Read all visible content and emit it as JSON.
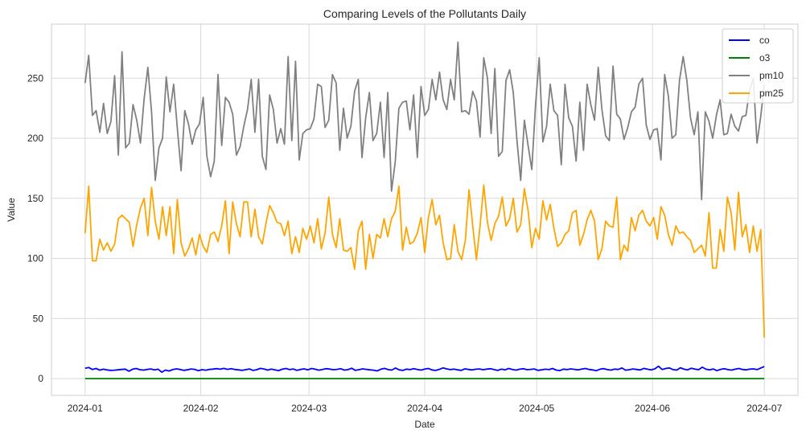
{
  "chart_data": {
    "type": "line",
    "title": "Comparing Levels of the Pollutants Daily",
    "xlabel": "Date",
    "ylabel": "Value",
    "x_start": "2024-01-01",
    "x_end": "2024-07-01",
    "xlim": [
      "2023-12-23",
      "2024-07-10"
    ],
    "ylim": [
      -14,
      295
    ],
    "grid": true,
    "legend_position": "top-right",
    "x_ticks": [
      "2024-01",
      "2024-02",
      "2024-03",
      "2024-04",
      "2024-05",
      "2024-06",
      "2024-07"
    ],
    "y_ticks": [
      0,
      50,
      100,
      150,
      200,
      250
    ],
    "series": [
      {
        "name": "co",
        "color": "#0000ff",
        "values": [
          8.6,
          9.2,
          7.6,
          8.4,
          7.1,
          7.8,
          7.2,
          6.9,
          7.0,
          7.3,
          7.6,
          7.9,
          6.1,
          7.8,
          8.4,
          7.4,
          7.1,
          7.6,
          8.0,
          7.3,
          7.8,
          5.3,
          7.1,
          6.3,
          7.5,
          8.1,
          7.6,
          6.9,
          7.3,
          8.0,
          7.7,
          6.6,
          7.4,
          7.0,
          7.6,
          7.9,
          8.3,
          7.8,
          8.5,
          7.7,
          8.2,
          7.6,
          7.3,
          6.9,
          7.4,
          8.0,
          6.8,
          7.4,
          8.5,
          8.0,
          7.1,
          7.9,
          7.3,
          6.7,
          7.8,
          8.4,
          7.5,
          8.0,
          6.9,
          7.6,
          8.1,
          7.3,
          8.4,
          7.8,
          7.0,
          7.6,
          8.3,
          7.9,
          7.4,
          7.7,
          8.2,
          7.1,
          7.5,
          8.6,
          6.9,
          7.4,
          8.1,
          7.7,
          7.3,
          7.0,
          6.4,
          7.8,
          8.5,
          7.5,
          7.1,
          8.8,
          7.3,
          6.8,
          7.9,
          7.5,
          8.3,
          7.6,
          7.1,
          7.9,
          8.4,
          7.2,
          6.8,
          7.7,
          8.9,
          8.1,
          7.5,
          7.9,
          7.3,
          6.9,
          8.1,
          7.6,
          7.2,
          7.8,
          8.0,
          7.4,
          7.9,
          8.2,
          7.5,
          6.8,
          7.9,
          7.3,
          8.4,
          7.6,
          7.1,
          7.8,
          8.2,
          7.4,
          7.7,
          8.0,
          6.9,
          7.3,
          7.8,
          7.5,
          8.4,
          7.1,
          6.7,
          7.9,
          7.5,
          8.1,
          7.7,
          7.3,
          7.9,
          8.4,
          7.6,
          7.2,
          6.6,
          7.8,
          8.3,
          7.5,
          7.1,
          7.9,
          7.6,
          8.8,
          7.0,
          7.4,
          8.0,
          7.6,
          7.2,
          8.5,
          7.8,
          7.3,
          8.1,
          10.3,
          7.6,
          8.4,
          8.9,
          7.5,
          7.1,
          9.0,
          7.8,
          7.3,
          8.6,
          7.9,
          7.4,
          9.5,
          7.8,
          7.2,
          8.0,
          6.6,
          7.7,
          8.3,
          7.5,
          7.1,
          7.8,
          8.4,
          7.6,
          7.3,
          7.9,
          8.1,
          7.5,
          8.8,
          10.0
        ],
        "note_color_name": "blue"
      },
      {
        "name": "o3",
        "color": "#008000",
        "values_constant": 0.0
      },
      {
        "name": "pm10",
        "color": "#808080",
        "values": [
          246,
          269,
          219,
          223,
          205,
          229,
          204,
          214,
          252,
          186,
          272,
          192,
          196,
          228,
          215,
          196,
          233,
          259,
          222,
          165,
          192,
          200,
          251,
          222,
          245,
          208,
          173,
          223,
          212,
          195,
          207,
          212,
          234,
          185,
          168,
          181,
          253,
          194,
          234,
          230,
          220,
          186,
          193,
          210,
          224,
          249,
          205,
          249,
          185,
          174,
          236,
          224,
          196,
          208,
          195,
          268,
          198,
          264,
          182,
          204,
          207,
          208,
          216,
          245,
          243,
          209,
          215,
          253,
          246,
          190,
          225,
          200,
          210,
          239,
          249,
          184,
          217,
          238,
          198,
          204,
          230,
          184,
          238,
          156,
          180,
          225,
          230,
          231,
          207,
          236,
          184,
          243,
          219,
          224,
          249,
          232,
          255,
          232,
          224,
          249,
          232,
          280,
          222,
          223,
          220,
          239,
          231,
          201,
          267,
          250,
          204,
          258,
          185,
          189,
          248,
          257,
          238,
          198,
          165,
          215,
          194,
          174,
          227,
          267,
          197,
          210,
          245,
          223,
          219,
          178,
          245,
          217,
          210,
          181,
          230,
          190,
          245,
          228,
          215,
          259,
          224,
          202,
          198,
          260,
          220,
          216,
          199,
          209,
          222,
          226,
          245,
          250,
          211,
          199,
          207,
          208,
          182,
          253,
          235,
          200,
          203,
          248,
          268,
          248,
          217,
          203,
          222,
          149,
          222,
          214,
          200,
          219,
          232,
          203,
          204,
          220,
          210,
          206,
          218,
          219,
          240,
          250,
          196,
          218,
          245
        ]
      },
      {
        "name": "pm25",
        "color": "#ffa500",
        "values": [
          121,
          160,
          98,
          98,
          116,
          107,
          113,
          106,
          112,
          133,
          136,
          133,
          130,
          110,
          128,
          142,
          150,
          119,
          159,
          131,
          116,
          143,
          119,
          143,
          104,
          149,
          113,
          102,
          108,
          117,
          103,
          120,
          110,
          105,
          120,
          122,
          114,
          127,
          148,
          104,
          147,
          129,
          118,
          147,
          147,
          118,
          141,
          118,
          112,
          129,
          144,
          138,
          130,
          129,
          119,
          131,
          104,
          118,
          105,
          125,
          116,
          127,
          113,
          133,
          108,
          121,
          151,
          120,
          109,
          133,
          107,
          106,
          109,
          91,
          123,
          131,
          91,
          120,
          100,
          120,
          117,
          133,
          118,
          133,
          139,
          160,
          107,
          126,
          112,
          114,
          121,
          134,
          105,
          134,
          149,
          128,
          136,
          113,
          99,
          100,
          128,
          106,
          99,
          115,
          157,
          127,
          99,
          127,
          161,
          130,
          115,
          129,
          135,
          151,
          127,
          133,
          150,
          122,
          128,
          158,
          140,
          109,
          125,
          116,
          148,
          132,
          145,
          125,
          110,
          113,
          120,
          123,
          138,
          140,
          111,
          120,
          132,
          140,
          131,
          99,
          108,
          131,
          127,
          126,
          151,
          99,
          111,
          106,
          134,
          123,
          136,
          140,
          131,
          127,
          134,
          116,
          143,
          136,
          120,
          111,
          127,
          121,
          122,
          118,
          115,
          105,
          108,
          111,
          102,
          138,
          92,
          92,
          124,
          106,
          151,
          138,
          107,
          155,
          118,
          128,
          105,
          127,
          106,
          124,
          34
        ]
      }
    ]
  }
}
